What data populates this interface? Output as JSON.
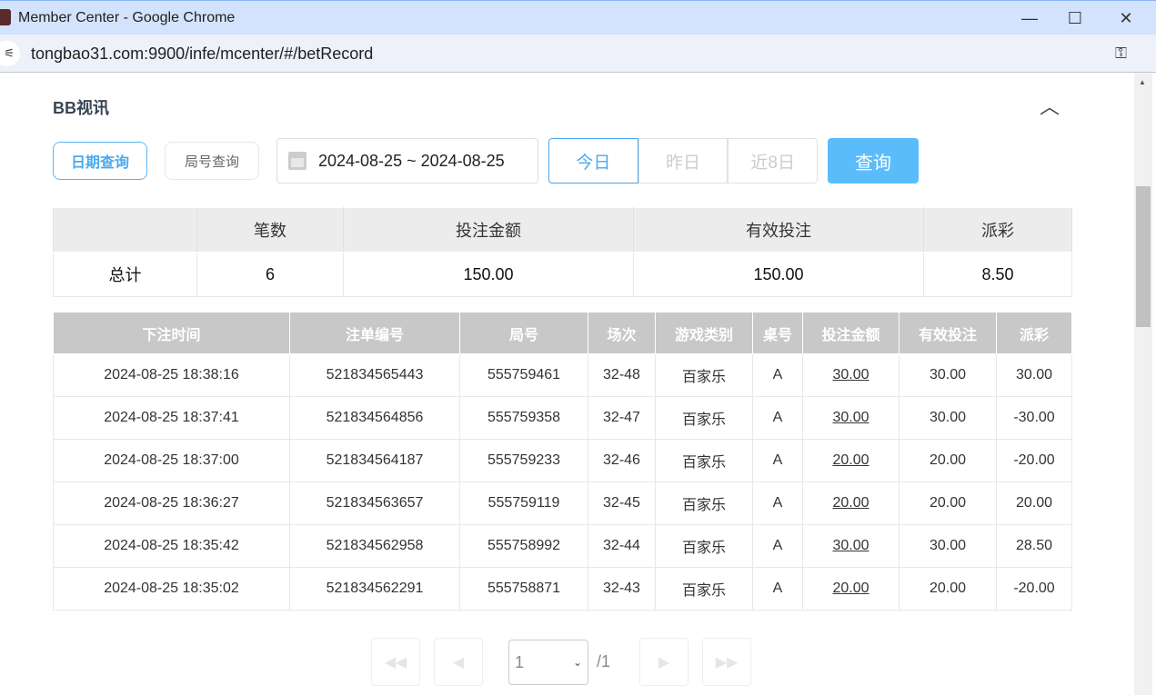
{
  "window": {
    "title": "Member Center - Google Chrome",
    "url": "tongbao31.com:9900/infe/mcenter/#/betRecord"
  },
  "section": {
    "title": "BB视讯"
  },
  "filters": {
    "date_tab": "日期查询",
    "round_tab": "局号查询",
    "date_range": "2024-08-25 ~ 2024-08-25",
    "today": "今日",
    "yesterday": "昨日",
    "last8": "近8日",
    "query": "查询",
    "active_quick": "今日"
  },
  "summary": {
    "headers": [
      "",
      "笔数",
      "投注金额",
      "有效投注",
      "派彩"
    ],
    "row": [
      "总计",
      "6",
      "150.00",
      "150.00",
      "8.50"
    ]
  },
  "records": {
    "headers": [
      "下注时间",
      "注单编号",
      "局号",
      "场次",
      "游戏类别",
      "桌号",
      "投注金额",
      "有效投注",
      "派彩"
    ],
    "rows": [
      [
        "2024-08-25 18:38:16",
        "521834565443",
        "555759461",
        "32-48",
        "百家乐",
        "A",
        "30.00",
        "30.00",
        "30.00"
      ],
      [
        "2024-08-25 18:37:41",
        "521834564856",
        "555759358",
        "32-47",
        "百家乐",
        "A",
        "30.00",
        "30.00",
        "-30.00"
      ],
      [
        "2024-08-25 18:37:00",
        "521834564187",
        "555759233",
        "32-46",
        "百家乐",
        "A",
        "20.00",
        "20.00",
        "-20.00"
      ],
      [
        "2024-08-25 18:36:27",
        "521834563657",
        "555759119",
        "32-45",
        "百家乐",
        "A",
        "20.00",
        "20.00",
        "20.00"
      ],
      [
        "2024-08-25 18:35:42",
        "521834562958",
        "555758992",
        "32-44",
        "百家乐",
        "A",
        "30.00",
        "30.00",
        "28.50"
      ],
      [
        "2024-08-25 18:35:02",
        "521834562291",
        "555758871",
        "32-43",
        "百家乐",
        "A",
        "20.00",
        "20.00",
        "-20.00"
      ]
    ]
  },
  "pagination": {
    "current": "1",
    "total": "/1"
  },
  "colors": {
    "accent": "#4aa8ef",
    "query_button": "#5bbcfb",
    "negative": "#f0506e",
    "header_gray": "#c8c8c8"
  }
}
